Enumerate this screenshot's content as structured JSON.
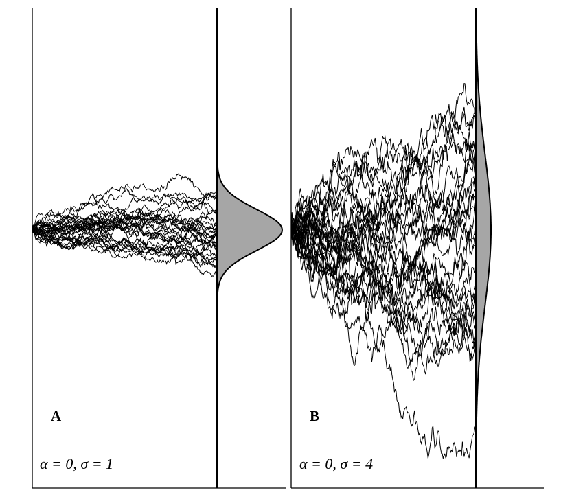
{
  "panels": [
    {
      "letter": "A",
      "params": "α = 0, σ = 1",
      "alpha": 0,
      "sigma": 1,
      "num_paths": 30,
      "distribution_fill": "#a6a6a6"
    },
    {
      "letter": "B",
      "params": "α = 0, σ = 4",
      "alpha": 0,
      "sigma": 4,
      "num_paths": 30,
      "distribution_fill": "#a6a6a6"
    }
  ],
  "colors": {
    "paths": "#000000",
    "axes": "#000000",
    "background": "#ffffff"
  }
}
